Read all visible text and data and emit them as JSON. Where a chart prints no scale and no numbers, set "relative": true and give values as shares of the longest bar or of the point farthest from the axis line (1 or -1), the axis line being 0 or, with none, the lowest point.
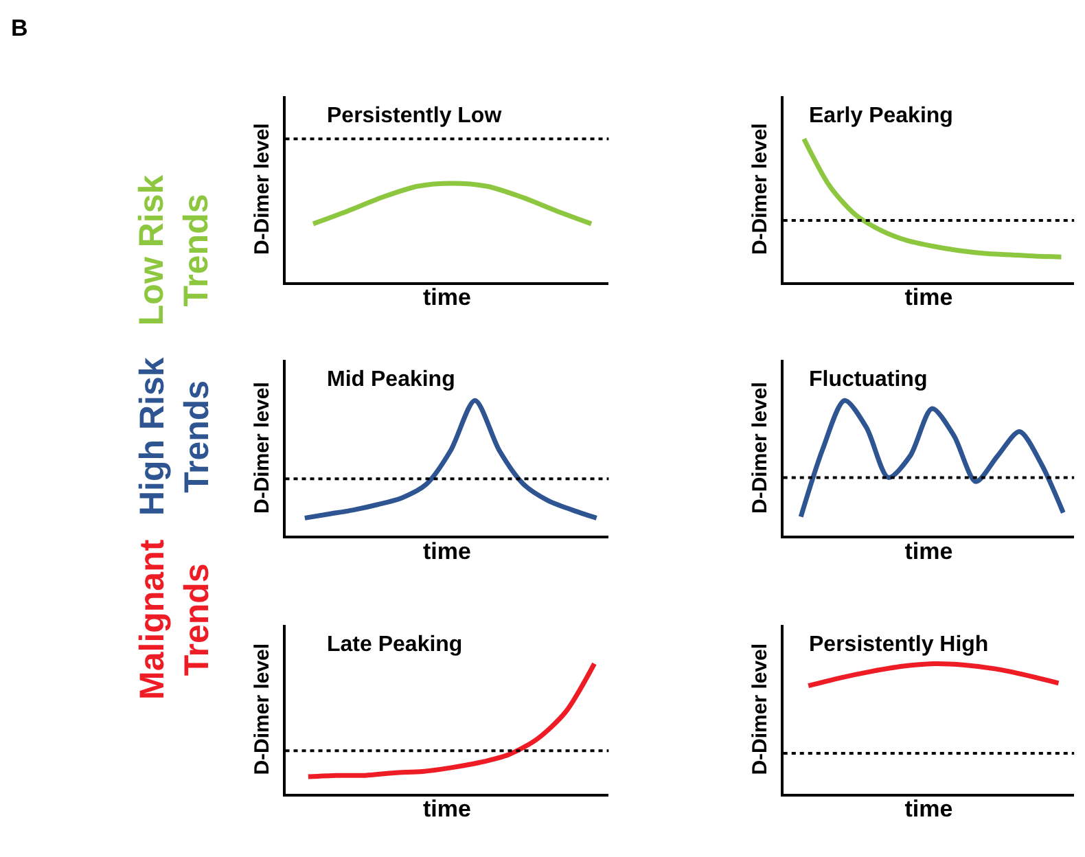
{
  "chart_data": [
    {
      "type": "line",
      "title": "Persistently Low",
      "xlabel": "time",
      "ylabel": "D-Dimer level",
      "relative": true,
      "tick_labels": false,
      "annotations": [
        "B",
        "Low Risk\nTrends"
      ],
      "categories": [
        null,
        null,
        null,
        null,
        null,
        null,
        null,
        null,
        null
      ],
      "series": [
        {
          "color": "#8dc63f",
          "values": [
            0.59,
            0.72,
            0.86,
            0.97,
            1,
            0.97,
            0.86,
            0.72,
            0.59
          ]
        }
      ],
      "ref_lines": [
        {
          "axis": "y",
          "value": 1.45,
          "line_style": "dotted"
        }
      ]
    },
    {
      "type": "line",
      "title": "Early Peaking",
      "xlabel": "time",
      "ylabel": "D-Dimer level",
      "relative": true,
      "tick_labels": false,
      "categories": [
        null,
        null,
        null,
        null,
        null,
        null,
        null,
        null,
        null,
        null,
        null
      ],
      "series": [
        {
          "color": "#8dc63f",
          "values": [
            1,
            0.67,
            0.47,
            0.36,
            0.29,
            0.25,
            0.22,
            0.2,
            0.19,
            0.18,
            0.175
          ]
        }
      ],
      "ref_lines": [
        {
          "axis": "y",
          "value": 0.43,
          "line_style": "dotted"
        }
      ]
    },
    {
      "type": "line",
      "title": "Mid Peaking",
      "xlabel": "time",
      "ylabel": "D-Dimer level",
      "relative": true,
      "tick_labels": false,
      "annotations": [
        "High Risk\nTrends"
      ],
      "categories": [
        null,
        null,
        null,
        null,
        null,
        null,
        null,
        null,
        null,
        null,
        null,
        null,
        null
      ],
      "series": [
        {
          "color": "#2e5591",
          "values": [
            0.13,
            0.16,
            0.19,
            0.23,
            0.28,
            0.38,
            0.63,
            1,
            0.63,
            0.38,
            0.26,
            0.19,
            0.13
          ]
        }
      ],
      "ref_lines": [
        {
          "axis": "y",
          "value": 0.42,
          "line_style": "dotted"
        }
      ]
    },
    {
      "type": "line",
      "title": "Fluctuating",
      "xlabel": "time",
      "ylabel": "D-Dimer level",
      "relative": true,
      "tick_labels": false,
      "categories": [
        null,
        null,
        null,
        null,
        null,
        null,
        null,
        null,
        null,
        null,
        null,
        null,
        null
      ],
      "series": [
        {
          "color": "#2e5591",
          "values": [
            0.14,
            0.64,
            1,
            0.8,
            0.43,
            0.59,
            0.94,
            0.74,
            0.4,
            0.59,
            0.77,
            0.53,
            0.17
          ]
        }
      ],
      "ref_lines": [
        {
          "axis": "y",
          "value": 0.43,
          "line_style": "dotted"
        }
      ]
    },
    {
      "type": "line",
      "title": "Late Peaking",
      "xlabel": "time",
      "ylabel": "D-Dimer level",
      "relative": true,
      "tick_labels": false,
      "annotations": [
        "Malignant\nTrends"
      ],
      "categories": [
        null,
        null,
        null,
        null,
        null,
        null,
        null,
        null,
        null,
        null,
        null
      ],
      "series": [
        {
          "color": "#ee1c25",
          "values": [
            0.13,
            0.14,
            0.14,
            0.16,
            0.17,
            0.2,
            0.24,
            0.3,
            0.42,
            0.63,
            1
          ]
        }
      ],
      "ref_lines": [
        {
          "axis": "y",
          "value": 0.33,
          "line_style": "dotted"
        }
      ]
    },
    {
      "type": "line",
      "title": "Persistently High",
      "xlabel": "time",
      "ylabel": "D-Dimer level",
      "relative": true,
      "tick_labels": false,
      "categories": [
        null,
        null,
        null,
        null,
        null,
        null,
        null,
        null,
        null
      ],
      "series": [
        {
          "color": "#ee1c25",
          "values": [
            0.83,
            0.89,
            0.94,
            0.98,
            1,
            0.99,
            0.96,
            0.91,
            0.85
          ]
        }
      ],
      "ref_lines": [
        {
          "axis": "y",
          "value": 0.31,
          "line_style": "dotted"
        }
      ]
    }
  ]
}
